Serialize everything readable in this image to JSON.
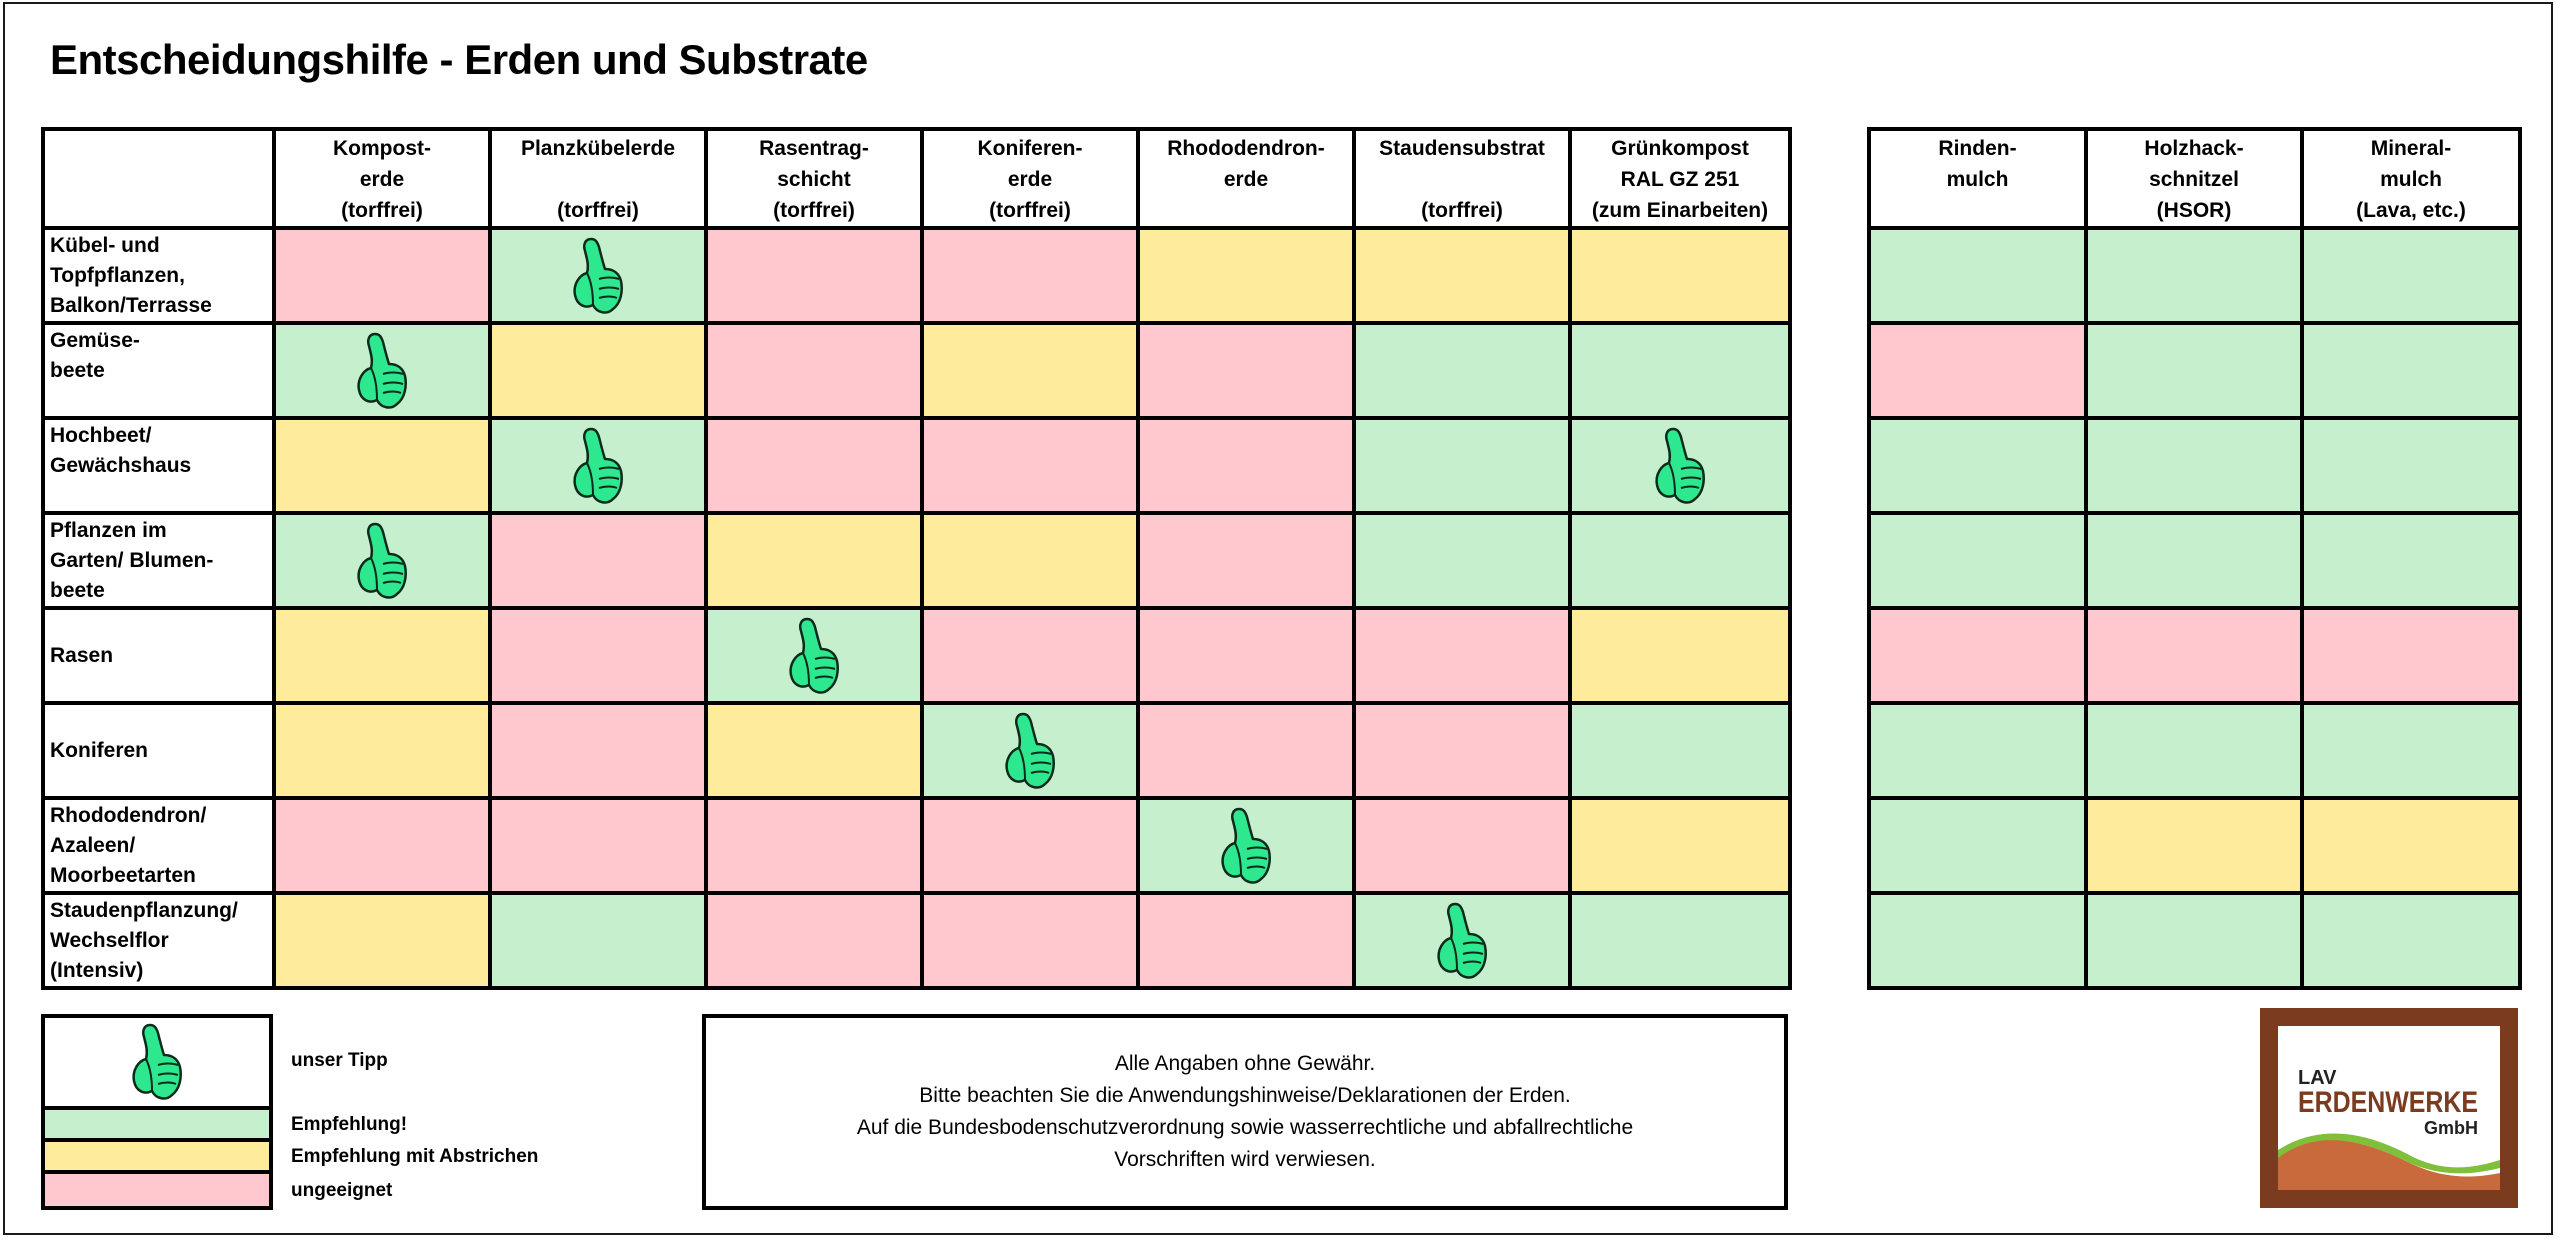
{
  "title": "Entscheidungshilfe - Erden und Substrate",
  "colors": {
    "green": "#c6efce",
    "yellow": "#ffeb9c",
    "red": "#ffc7ce",
    "thumb_fill": "#2ee88f",
    "logo_brown": "#7a3b1e",
    "logo_orange": "#c96a3c",
    "logo_green": "#7fbf3a"
  },
  "status_legend": {
    "g": "Empfehlung!",
    "y": "Empfehlung mit Abstrichen",
    "r": "ungeeignet",
    "tip": "unser Tipp"
  },
  "main_columns": [
    {
      "lines": [
        "Kompost-",
        "erde",
        "(torffrei)"
      ]
    },
    {
      "lines": [
        "Planzkübelerde",
        "",
        "(torffrei)"
      ]
    },
    {
      "lines": [
        "Rasentrag-",
        "schicht",
        "(torffrei)"
      ]
    },
    {
      "lines": [
        "Koniferen-",
        "erde",
        "(torffrei)"
      ]
    },
    {
      "lines": [
        "Rhododendron-",
        "erde",
        ""
      ]
    },
    {
      "lines": [
        "Staudensubstrat",
        "",
        "(torffrei)"
      ]
    },
    {
      "lines": [
        "Grünkompost",
        "RAL GZ 251",
        "(zum Einarbeiten)"
      ]
    }
  ],
  "mulch_columns": [
    {
      "lines": [
        "Rinden-",
        "mulch",
        ""
      ]
    },
    {
      "lines": [
        "Holzhack-",
        "schnitzel",
        "(HSOR)"
      ]
    },
    {
      "lines": [
        "Mineral-",
        "mulch",
        "(Lava, etc.)"
      ]
    }
  ],
  "rows": [
    {
      "lines": [
        "Kübel- und",
        "Topfpflanzen,",
        "Balkon/Terrasse"
      ],
      "main": [
        "r",
        "g",
        "r",
        "r",
        "y",
        "y",
        "y"
      ],
      "tip": 1,
      "mulch": [
        "g",
        "g",
        "g"
      ]
    },
    {
      "lines": [
        "Gemüse-",
        "beete",
        ""
      ],
      "main": [
        "g",
        "y",
        "r",
        "y",
        "r",
        "g",
        "g"
      ],
      "tip": 0,
      "mulch": [
        "r",
        "g",
        "g"
      ]
    },
    {
      "lines": [
        "Hochbeet/",
        "Gewächshaus",
        ""
      ],
      "main": [
        "y",
        "g",
        "r",
        "r",
        "r",
        "g",
        "g"
      ],
      "tip": [
        1,
        6
      ],
      "mulch": [
        "g",
        "g",
        "g"
      ]
    },
    {
      "lines": [
        "Pflanzen im",
        "Garten/ Blumen-",
        "beete"
      ],
      "main": [
        "g",
        "r",
        "y",
        "y",
        "r",
        "g",
        "g"
      ],
      "tip": 0,
      "mulch": [
        "g",
        "g",
        "g"
      ]
    },
    {
      "lines": [
        "Rasen"
      ],
      "main": [
        "y",
        "r",
        "g",
        "r",
        "r",
        "r",
        "y"
      ],
      "tip": 2,
      "mulch": [
        "r",
        "r",
        "r"
      ]
    },
    {
      "lines": [
        "Koniferen"
      ],
      "main": [
        "y",
        "r",
        "y",
        "g",
        "r",
        "r",
        "g"
      ],
      "tip": 3,
      "mulch": [
        "g",
        "g",
        "g"
      ]
    },
    {
      "lines": [
        "Rhododendron/",
        "Azaleen/",
        "Moorbeetarten"
      ],
      "main": [
        "r",
        "r",
        "r",
        "r",
        "g",
        "r",
        "y"
      ],
      "tip": 4,
      "mulch": [
        "g",
        "y",
        "y"
      ]
    },
    {
      "lines": [
        "Staudenpflanzung/",
        "Wechselflor",
        "(Intensiv)"
      ],
      "main": [
        "y",
        "g",
        "r",
        "r",
        "r",
        "g",
        "g"
      ],
      "tip": 5,
      "mulch": [
        "g",
        "g",
        "g"
      ]
    }
  ],
  "notes": [
    "Alle Angaben ohne Gewähr.",
    "Bitte beachten Sie die Anwendungshinweise/Deklarationen der Erden.",
    "Auf die Bundesbodenschutzverordnung sowie wasserrechtliche und abfallrechtliche",
    "Vorschriften wird verwiesen."
  ],
  "logo": {
    "line1": "LAV",
    "line2": "ERDENWERKE",
    "line3": "GmbH"
  }
}
